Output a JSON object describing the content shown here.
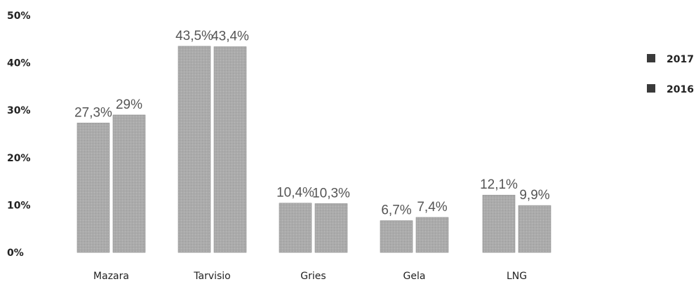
{
  "chart_data": {
    "type": "bar",
    "categories": [
      "Mazara",
      "Tarvisio",
      "Gries",
      "Gela",
      "LNG"
    ],
    "series": [
      {
        "name": "2017",
        "values": [
          27.3,
          43.5,
          10.4,
          6.7,
          12.1
        ],
        "labels": [
          "27,3%",
          "43,5%",
          "10,4%",
          "6,7%",
          "12,1%"
        ],
        "color": "#a8a8a8"
      },
      {
        "name": "2016",
        "values": [
          29.0,
          43.4,
          10.3,
          7.4,
          9.9
        ],
        "labels": [
          "29%",
          "43,4%",
          "10,3%",
          "7,4%",
          "9,9%"
        ],
        "color": "#b0b0b0"
      }
    ],
    "yticks": [
      "0%",
      "10%",
      "20%",
      "30%",
      "40%",
      "50%"
    ],
    "ylim": [
      0,
      50
    ],
    "grid": false,
    "legend": "right"
  }
}
